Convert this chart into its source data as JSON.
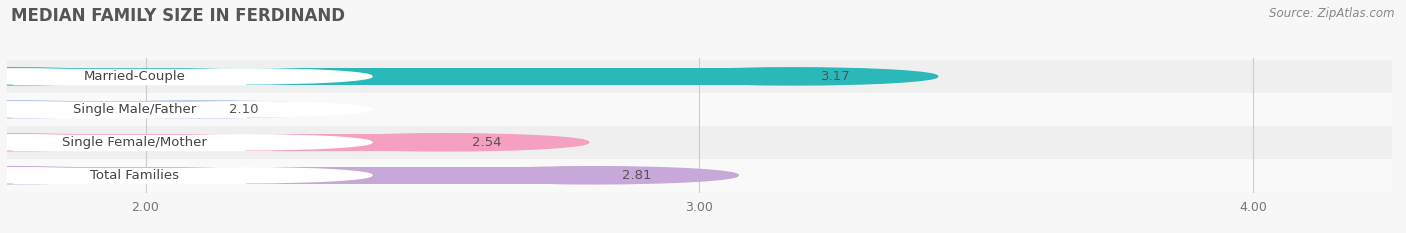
{
  "title": "MEDIAN FAMILY SIZE IN FERDINAND",
  "source": "Source: ZipAtlas.com",
  "categories": [
    "Married-Couple",
    "Single Male/Father",
    "Single Female/Mother",
    "Total Families"
  ],
  "values": [
    3.17,
    2.1,
    2.54,
    2.81
  ],
  "bar_colors": [
    "#2ab8b8",
    "#b5c8e8",
    "#f5a0c0",
    "#c8a8d8"
  ],
  "background_color": "#f7f7f7",
  "row_bg_colors": [
    "#efefef",
    "#f9f9f9"
  ],
  "xlim_min": 1.75,
  "xlim_max": 4.25,
  "xticks": [
    2.0,
    3.0,
    4.0
  ],
  "label_fontsize": 9.5,
  "value_fontsize": 9.5,
  "title_fontsize": 12,
  "source_fontsize": 8.5,
  "bar_height": 0.52
}
